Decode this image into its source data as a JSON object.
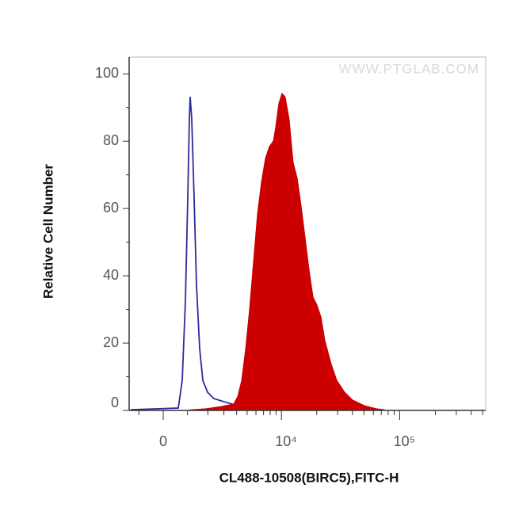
{
  "chart_data": {
    "type": "histogram-overlay",
    "xlabel": "CL488-10508(BIRC5),FITC-H",
    "ylabel": "Relative Cell Number",
    "watermark": "WWW.PTGLAB.COM",
    "xscale": "biexponential",
    "xlim": [
      -1450,
      530000
    ],
    "xticks": [
      0,
      {
        "value": 10000,
        "label": "10⁴"
      },
      {
        "value": 100000,
        "label": "10⁵"
      }
    ],
    "x_minor_ticks": [
      -1000,
      1000,
      2000,
      3000,
      4000,
      5000,
      6000,
      7000,
      8000,
      9000,
      20000,
      30000,
      40000,
      50000,
      60000,
      70000,
      80000,
      90000,
      200000,
      300000,
      400000,
      500000
    ],
    "ylim": [
      0,
      105
    ],
    "yticks": [
      0,
      20,
      40,
      60,
      80,
      100
    ],
    "y_minor_ticks": [
      10,
      30,
      50,
      70,
      90
    ],
    "series": [
      {
        "color": "#2b2b9a",
        "fill": false,
        "x": [
          -1370,
          605,
          771,
          906,
          1010,
          1082,
          1117,
          1190,
          1300,
          1413,
          1570,
          1732,
          1986,
          2350,
          3162,
          4096,
          5712,
          7877
        ],
        "values": [
          0.2,
          0.7,
          8.9,
          32.5,
          63.1,
          86.6,
          93.2,
          86.6,
          63.1,
          37.2,
          18.4,
          8.9,
          5.4,
          3.5,
          2.4,
          1.4,
          0.5,
          0.2
        ]
      },
      {
        "color": "#cc0000",
        "fill": true,
        "x": [
          1117,
          1898,
          2871,
          3751,
          4096,
          4458,
          4849,
          5264,
          5712,
          6194,
          6716,
          7280,
          7877,
          8536,
          8939,
          9519,
          10123,
          10777,
          11657,
          12618,
          13644,
          14755,
          15951,
          17198,
          18610,
          20082,
          21697,
          23456,
          26524,
          29530,
          34458,
          40164,
          50593,
          63681,
          74315
        ],
        "values": [
          0.2,
          0.5,
          1.2,
          1.9,
          4.2,
          8.9,
          18.4,
          30.1,
          44.3,
          58.4,
          67.8,
          74.9,
          78.4,
          80.1,
          84.3,
          91.3,
          94.2,
          93.2,
          86.6,
          73.7,
          69.0,
          60.7,
          51.3,
          41.9,
          33.7,
          31.3,
          27.8,
          20.7,
          13.7,
          8.9,
          5.4,
          3.1,
          1.4,
          0.5,
          0.2
        ]
      }
    ]
  }
}
